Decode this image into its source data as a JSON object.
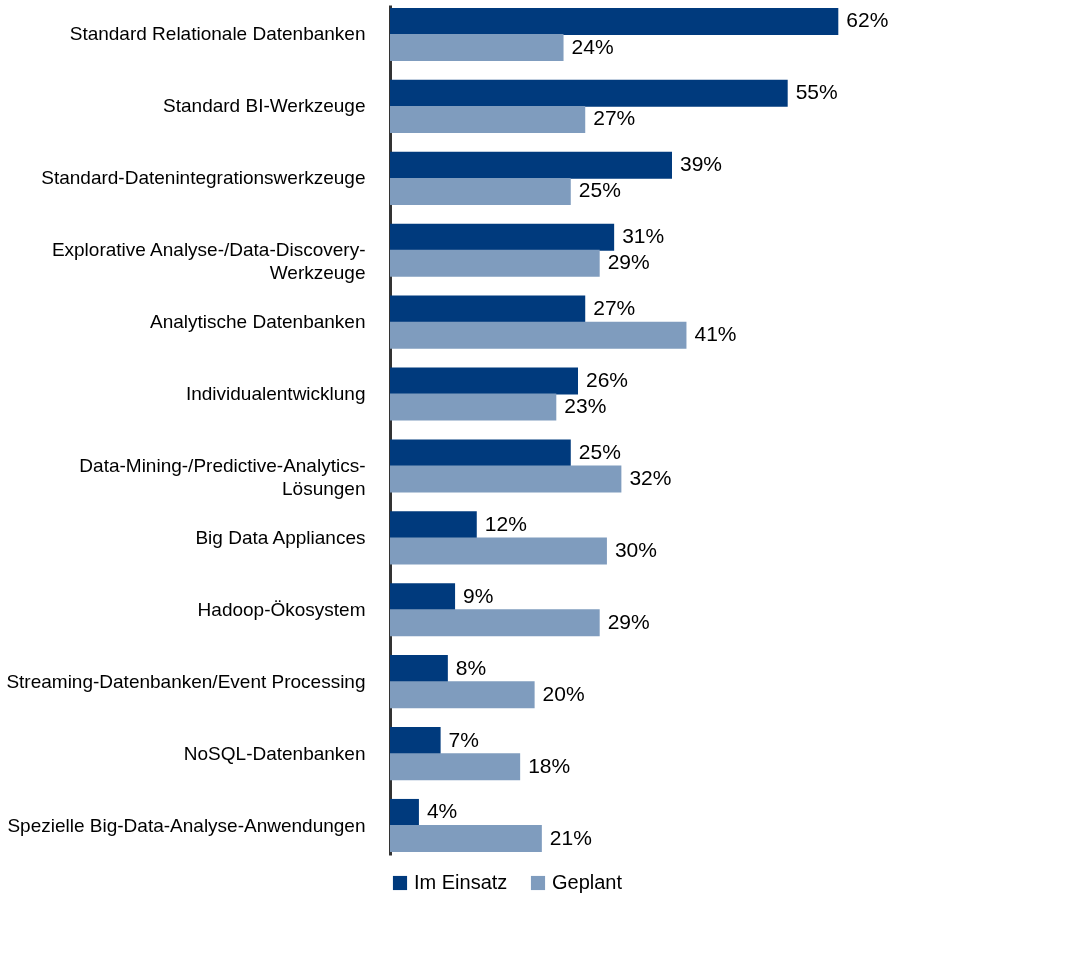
{
  "chart_data": {
    "type": "bar",
    "orientation": "horizontal",
    "legend": "bottom",
    "grid": false,
    "categories": [
      "Standard Relationale Datenbanken",
      "Standard BI-Werkzeuge",
      "Standard-Datenintegrationswerkzeuge",
      "Explorative Analyse-/Data-Discovery-\nWerkzeuge",
      "Analytische Datenbanken",
      "Individualentwicklung",
      "Data-Mining-/Predictive-Analytics-\nLösungen",
      "Big Data Appliances",
      "Hadoop-Ökosystem",
      "Streaming-Datenbanken/Event Processing",
      "NoSQL-Datenbanken",
      "Spezielle Big-Data-Analyse-Anwendungen"
    ],
    "series": [
      {
        "name": "Im Einsatz",
        "color": "#003a7d",
        "values": [
          62,
          55,
          39,
          31,
          27,
          26,
          25,
          12,
          9,
          8,
          7,
          4
        ],
        "value_labels": [
          "62%",
          "55%",
          "39%",
          "31%",
          "27%",
          "26%",
          "25%",
          "12%",
          "9%",
          "8%",
          "7%",
          "4%"
        ]
      },
      {
        "name": "Geplant",
        "color": "#7f9cbe",
        "values": [
          24,
          27,
          25,
          29,
          41,
          23,
          32,
          30,
          29,
          20,
          18,
          21
        ],
        "value_labels": [
          "24%",
          "27%",
          "25%",
          "29%",
          "41%",
          "23%",
          "32%",
          "30%",
          "29%",
          "20%",
          "18%",
          "21%"
        ]
      }
    ]
  }
}
